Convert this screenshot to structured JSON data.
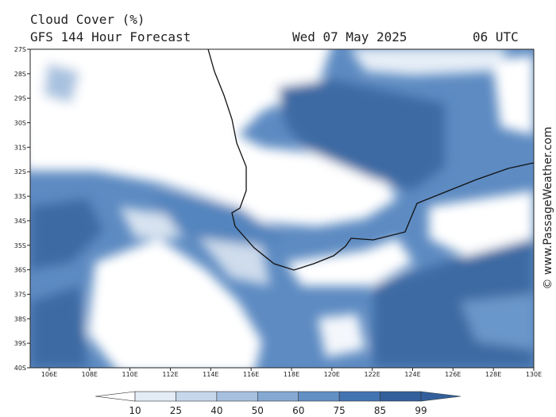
{
  "header": {
    "title": "Cloud Cover (%)",
    "subtitle": "GFS 144 Hour Forecast",
    "date": "Wed 07 May 2025",
    "time": "06 UTC"
  },
  "map": {
    "lat_labels": [
      "27S",
      "28S",
      "29S",
      "30S",
      "31S",
      "32S",
      "33S",
      "34S",
      "35S",
      "36S",
      "37S",
      "38S",
      "39S",
      "40S"
    ],
    "lon_labels": [
      "106E",
      "108E",
      "110E",
      "112E",
      "114E",
      "116E",
      "118E",
      "120E",
      "122E",
      "124E",
      "126E",
      "128E",
      "130E"
    ]
  },
  "legend": {
    "labels": [
      10,
      25,
      40,
      50,
      60,
      75,
      85,
      99
    ]
  },
  "credit": "© www.PassageWeather.com"
}
